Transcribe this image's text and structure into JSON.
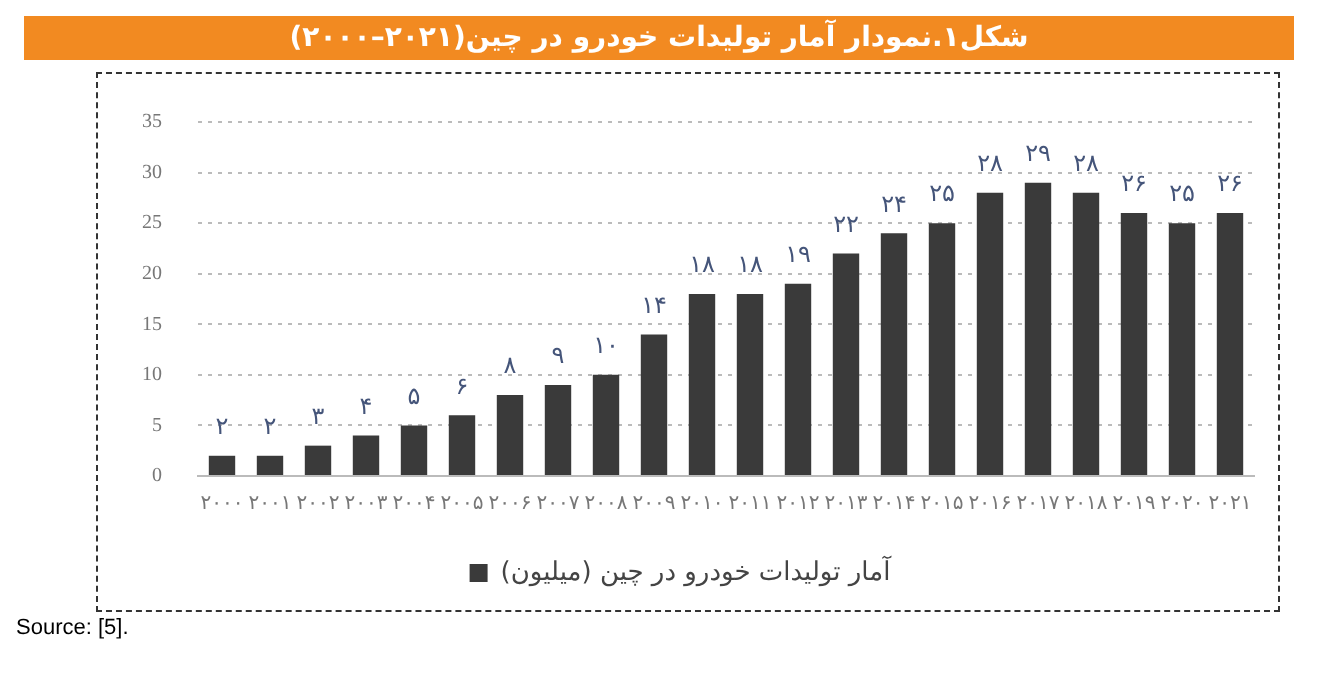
{
  "chart_data": {
    "type": "bar",
    "title": "شکل۱.نمودار آمار تولیدات خودرو در چین(۲۰۲۱–۲۰۰۰)",
    "categories": [
      "۲۰۰۰",
      "۲۰۰۱",
      "۲۰۰۲",
      "۲۰۰۳",
      "۲۰۰۴",
      "۲۰۰۵",
      "۲۰۰۶",
      "۲۰۰۷",
      "۲۰۰۸",
      "۲۰۰۹",
      "۲۰۱۰",
      "۲۰۱۱",
      "۲۰۱۲",
      "۲۰۱۳",
      "۲۰۱۴",
      "۲۰۱۵",
      "۲۰۱۶",
      "۲۰۱۷",
      "۲۰۱۸",
      "۲۰۱۹",
      "۲۰۲۰",
      "۲۰۲۱"
    ],
    "series": [
      {
        "name": "آمار تولیدات خودرو در چین (میلیون)",
        "color": "#3a3a3a",
        "values": [
          2,
          2,
          3,
          4,
          5,
          6,
          8,
          9,
          10,
          14,
          18,
          18,
          19,
          22,
          24,
          25,
          28,
          29,
          28,
          26,
          25,
          26
        ],
        "value_labels": [
          "۲",
          "۲",
          "۳",
          "۴",
          "۵",
          "۶",
          "۸",
          "۹",
          "۱۰",
          "۱۴",
          "۱۸",
          "۱۸",
          "۱۹",
          "۲۲",
          "۲۴",
          "۲۵",
          "۲۸",
          "۲۹",
          "۲۸",
          "۲۶",
          "۲۵",
          "۲۶"
        ]
      }
    ],
    "ylim": [
      0,
      35
    ],
    "yticks": [
      0,
      5,
      10,
      15,
      20,
      25,
      30,
      35
    ],
    "grid": "y",
    "legend": "bottom",
    "annotations": [
      "Source: [5]."
    ]
  }
}
